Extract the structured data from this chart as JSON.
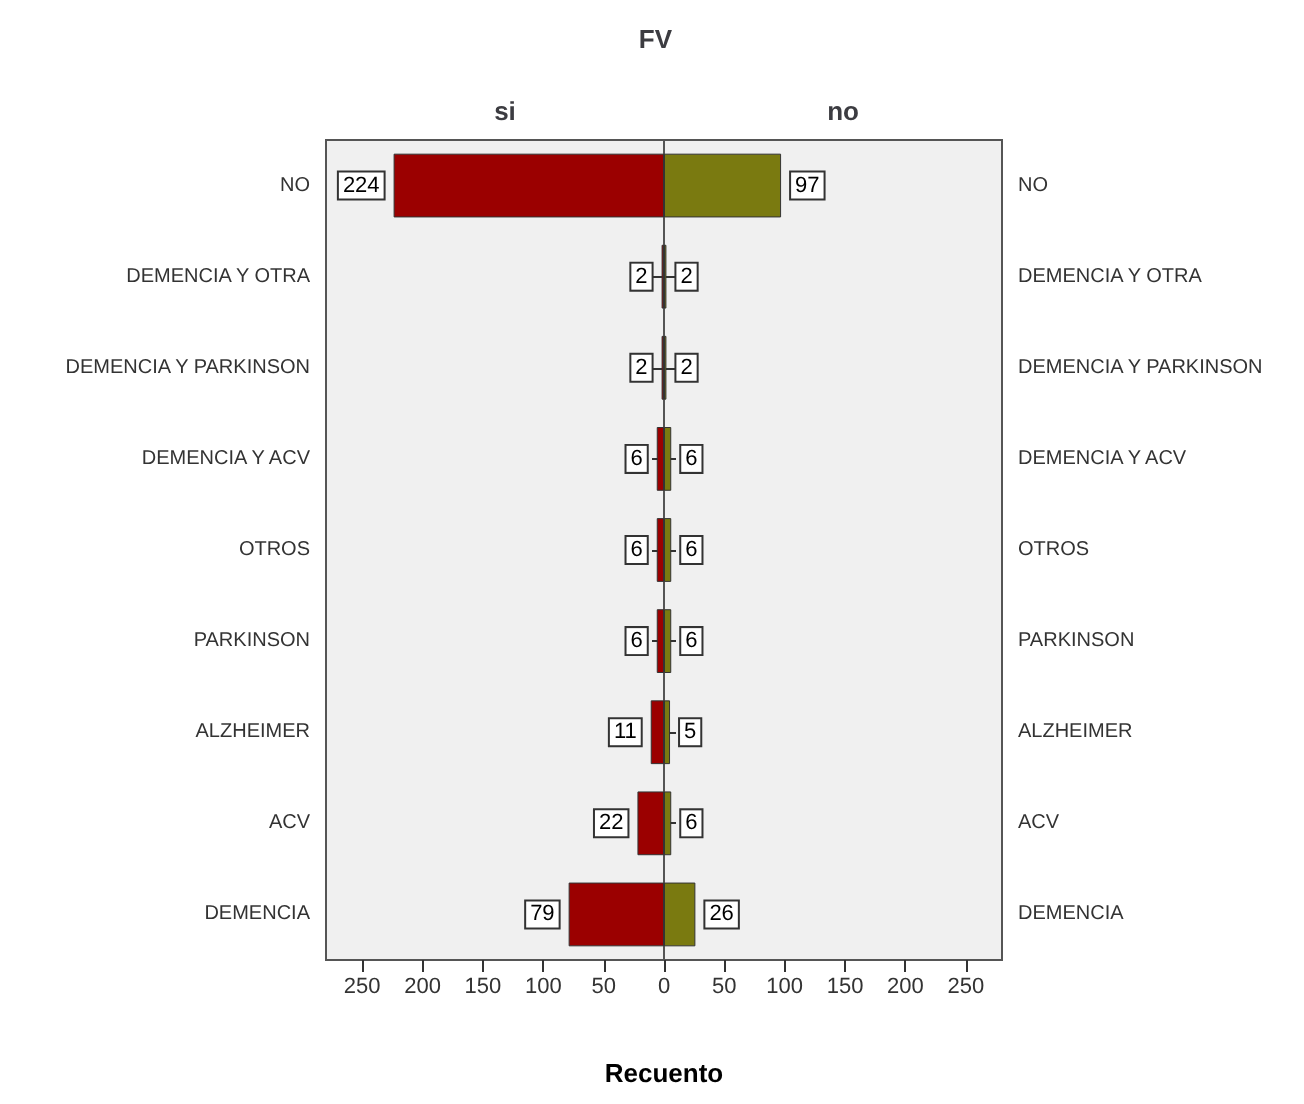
{
  "chart_data": [
    {
      "type": "bar",
      "orientation": "horizontal",
      "title": "FV",
      "subtitle": "si",
      "xlabel": "Recuento",
      "categories": [
        "NO",
        "DEMENCIA Y OTRA",
        "DEMENCIA Y PARKINSON",
        "DEMENCIA Y ACV",
        "OTROS",
        "PARKINSON",
        "ALZHEIMER",
        "ACV",
        "DEMENCIA"
      ],
      "values": [
        224,
        2,
        2,
        6,
        6,
        6,
        11,
        22,
        79
      ],
      "color": "#9b0000",
      "xlim": [
        280,
        0
      ],
      "xticks": [
        250,
        200,
        150,
        100,
        50,
        0
      ],
      "data_labels": true,
      "grid": false
    },
    {
      "type": "bar",
      "orientation": "horizontal",
      "subtitle": "no",
      "categories": [
        "NO",
        "DEMENCIA Y OTRA",
        "DEMENCIA Y PARKINSON",
        "DEMENCIA Y ACV",
        "OTROS",
        "PARKINSON",
        "ALZHEIMER",
        "ACV",
        "DEMENCIA"
      ],
      "values": [
        97,
        2,
        2,
        6,
        6,
        6,
        5,
        6,
        26
      ],
      "color": "#7a7a10",
      "xlim": [
        0,
        280
      ],
      "xticks": [
        50,
        100,
        150,
        200,
        250
      ],
      "data_labels": true,
      "grid": false
    }
  ]
}
